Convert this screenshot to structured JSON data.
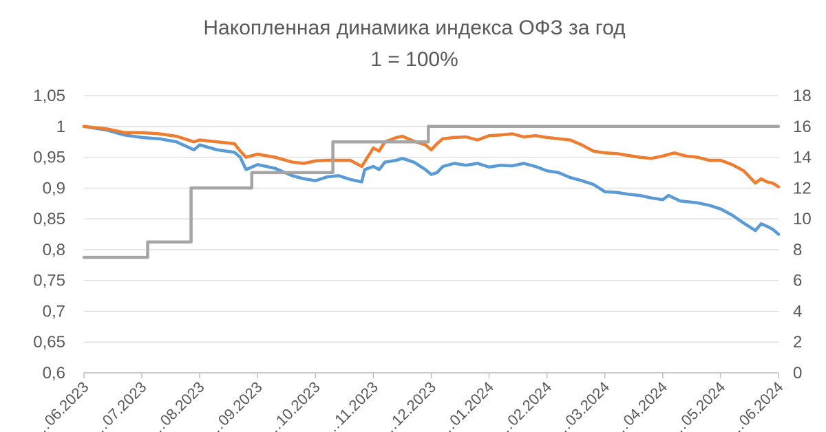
{
  "chart_data": {
    "type": "line",
    "title": "Накопленная динамика индекса ОФЗ за год",
    "subtitle": "1 = 100%",
    "y_left": {
      "min": 0.6,
      "max": 1.05,
      "step": 0.05,
      "tick_labels": [
        "0,6",
        "0,65",
        "0,7",
        "0,75",
        "0,8",
        "0,85",
        "0,9",
        "0,95",
        "1",
        "1,05"
      ]
    },
    "y_right": {
      "min": 0,
      "max": 18,
      "step": 2,
      "tick_labels": [
        "0",
        "2",
        "4",
        "6",
        "8",
        "10",
        "12",
        "14",
        "16",
        "18"
      ]
    },
    "x_tick_labels": [
      "…06.2023",
      "…07.2023",
      "…08.2023",
      "…09.2023",
      "…10.2023",
      "…11.2023",
      "…12.2023",
      "…01.2024",
      "…02.2024",
      "…03.2024",
      "…04.2024",
      "…05.2024",
      "…06.2024"
    ],
    "grid": true,
    "colors": {
      "blue": "#5b9bd5",
      "orange": "#ed7d31",
      "gray": "#a5a5a5",
      "grid": "#d9d9d9",
      "text": "#595959"
    },
    "series": [
      {
        "color": "#5b9bd5",
        "axis": "left",
        "points": [
          [
            0,
            1.0
          ],
          [
            4,
            0.994
          ],
          [
            7,
            0.986
          ],
          [
            10,
            0.982
          ],
          [
            13,
            0.98
          ],
          [
            16,
            0.975
          ],
          [
            19,
            0.962
          ],
          [
            20,
            0.97
          ],
          [
            23,
            0.962
          ],
          [
            26,
            0.958
          ],
          [
            27,
            0.95
          ],
          [
            28,
            0.93
          ],
          [
            30,
            0.938
          ],
          [
            33,
            0.932
          ],
          [
            36,
            0.92
          ],
          [
            38,
            0.915
          ],
          [
            40,
            0.912
          ],
          [
            42,
            0.918
          ],
          [
            44,
            0.92
          ],
          [
            46,
            0.914
          ],
          [
            48,
            0.91
          ],
          [
            48.5,
            0.93
          ],
          [
            50,
            0.935
          ],
          [
            51,
            0.93
          ],
          [
            52,
            0.942
          ],
          [
            54,
            0.945
          ],
          [
            55,
            0.948
          ],
          [
            57,
            0.942
          ],
          [
            59,
            0.93
          ],
          [
            60,
            0.922
          ],
          [
            61,
            0.925
          ],
          [
            62,
            0.935
          ],
          [
            64,
            0.94
          ],
          [
            66,
            0.937
          ],
          [
            68,
            0.94
          ],
          [
            70,
            0.934
          ],
          [
            72,
            0.937
          ],
          [
            74,
            0.936
          ],
          [
            76,
            0.94
          ],
          [
            78,
            0.935
          ],
          [
            80,
            0.928
          ],
          [
            82,
            0.925
          ],
          [
            84,
            0.917
          ],
          [
            86,
            0.912
          ],
          [
            88,
            0.906
          ],
          [
            90,
            0.894
          ],
          [
            92,
            0.893
          ],
          [
            94,
            0.89
          ],
          [
            96,
            0.888
          ],
          [
            98,
            0.884
          ],
          [
            100,
            0.881
          ],
          [
            101,
            0.888
          ],
          [
            103,
            0.879
          ],
          [
            106,
            0.876
          ],
          [
            108,
            0.872
          ],
          [
            110,
            0.866
          ],
          [
            112,
            0.856
          ],
          [
            114,
            0.843
          ],
          [
            116,
            0.831
          ],
          [
            117,
            0.842
          ],
          [
            118,
            0.838
          ],
          [
            119,
            0.833
          ],
          [
            120,
            0.825
          ]
        ]
      },
      {
        "color": "#ed7d31",
        "axis": "left",
        "points": [
          [
            0,
            1.0
          ],
          [
            4,
            0.996
          ],
          [
            7,
            0.99
          ],
          [
            10,
            0.99
          ],
          [
            13,
            0.988
          ],
          [
            16,
            0.984
          ],
          [
            19,
            0.975
          ],
          [
            20,
            0.978
          ],
          [
            23,
            0.975
          ],
          [
            26,
            0.972
          ],
          [
            27,
            0.96
          ],
          [
            28,
            0.95
          ],
          [
            30,
            0.955
          ],
          [
            33,
            0.95
          ],
          [
            36,
            0.942
          ],
          [
            38,
            0.94
          ],
          [
            40,
            0.944
          ],
          [
            42,
            0.945
          ],
          [
            44,
            0.945
          ],
          [
            46,
            0.945
          ],
          [
            47,
            0.94
          ],
          [
            48,
            0.935
          ],
          [
            49,
            0.95
          ],
          [
            50,
            0.965
          ],
          [
            51,
            0.96
          ],
          [
            52,
            0.975
          ],
          [
            54,
            0.982
          ],
          [
            55,
            0.984
          ],
          [
            57,
            0.976
          ],
          [
            59,
            0.97
          ],
          [
            60,
            0.962
          ],
          [
            61,
            0.972
          ],
          [
            62,
            0.98
          ],
          [
            64,
            0.982
          ],
          [
            66,
            0.983
          ],
          [
            68,
            0.978
          ],
          [
            70,
            0.985
          ],
          [
            72,
            0.986
          ],
          [
            74,
            0.988
          ],
          [
            76,
            0.983
          ],
          [
            78,
            0.985
          ],
          [
            80,
            0.982
          ],
          [
            82,
            0.98
          ],
          [
            84,
            0.978
          ],
          [
            86,
            0.97
          ],
          [
            88,
            0.96
          ],
          [
            90,
            0.957
          ],
          [
            92,
            0.956
          ],
          [
            94,
            0.953
          ],
          [
            96,
            0.95
          ],
          [
            98,
            0.948
          ],
          [
            100,
            0.952
          ],
          [
            102,
            0.957
          ],
          [
            104,
            0.952
          ],
          [
            106,
            0.95
          ],
          [
            108,
            0.945
          ],
          [
            110,
            0.945
          ],
          [
            112,
            0.938
          ],
          [
            114,
            0.928
          ],
          [
            115,
            0.918
          ],
          [
            116,
            0.908
          ],
          [
            117,
            0.915
          ],
          [
            118,
            0.91
          ],
          [
            119,
            0.908
          ],
          [
            120,
            0.902
          ]
        ]
      },
      {
        "color": "#a5a5a5",
        "axis": "right",
        "points": [
          [
            0,
            7.5
          ],
          [
            11,
            7.5
          ],
          [
            11,
            8.5
          ],
          [
            18.5,
            8.5
          ],
          [
            18.5,
            12
          ],
          [
            29,
            12
          ],
          [
            29,
            13
          ],
          [
            43,
            13
          ],
          [
            43,
            15
          ],
          [
            59.5,
            15
          ],
          [
            59.5,
            16
          ],
          [
            120,
            16
          ]
        ]
      }
    ]
  }
}
